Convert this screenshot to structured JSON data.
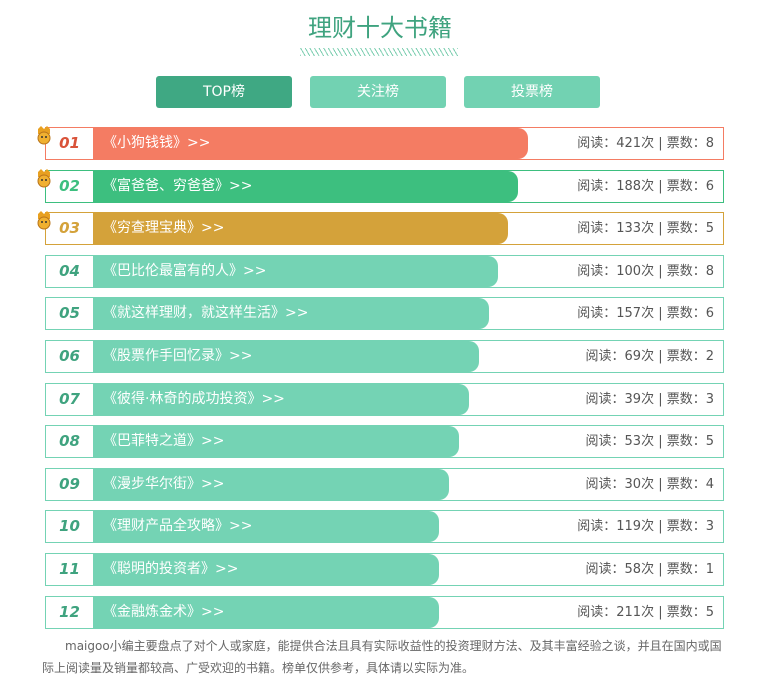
{
  "header": {
    "title": "理财十大书籍"
  },
  "tabs": [
    "TOP榜",
    "关注榜",
    "投票榜"
  ],
  "rows": [
    {
      "rank": "01",
      "name": "《小狗钱钱》>>",
      "stats": "阅读：421次 | 票数：8"
    },
    {
      "rank": "02",
      "name": "《富爸爸、穷爸爸》>>",
      "stats": "阅读：188次 | 票数：6"
    },
    {
      "rank": "03",
      "name": "《穷查理宝典》>>",
      "stats": "阅读：133次 | 票数：5"
    },
    {
      "rank": "04",
      "name": "《巴比伦最富有的人》>>",
      "stats": "阅读：100次 | 票数：8"
    },
    {
      "rank": "05",
      "name": "《就这样理财，就这样生活》>>",
      "stats": "阅读：157次 | 票数：6"
    },
    {
      "rank": "06",
      "name": "《股票作手回忆录》>>",
      "stats": "阅读：69次 | 票数：2"
    },
    {
      "rank": "07",
      "name": "《彼得·林奇的成功投资》>>",
      "stats": "阅读：39次 | 票数：3"
    },
    {
      "rank": "08",
      "name": "《巴菲特之道》>>",
      "stats": "阅读：53次 | 票数：5"
    },
    {
      "rank": "09",
      "name": "《漫步华尔街》>>",
      "stats": "阅读：30次 | 票数：4"
    },
    {
      "rank": "10",
      "name": "《理财产品全攻略》>>",
      "stats": "阅读：119次 | 票数：3"
    },
    {
      "rank": "11",
      "name": "《聪明的投资者》>>",
      "stats": "阅读：58次 | 票数：1"
    },
    {
      "rank": "12",
      "name": "《金融炼金术》>>",
      "stats": "阅读：211次 | 票数：5"
    }
  ],
  "footer": {
    "text": "maigoo小编主要盘点了对个人或家庭，能提供合法且具有实际收益性的投资理财方法、及其丰富经验之谈，并且在国内或国际上阅读量及销量都较高、广受欢迎的书籍。榜单仅供参考，具体请以实际为准。"
  }
}
